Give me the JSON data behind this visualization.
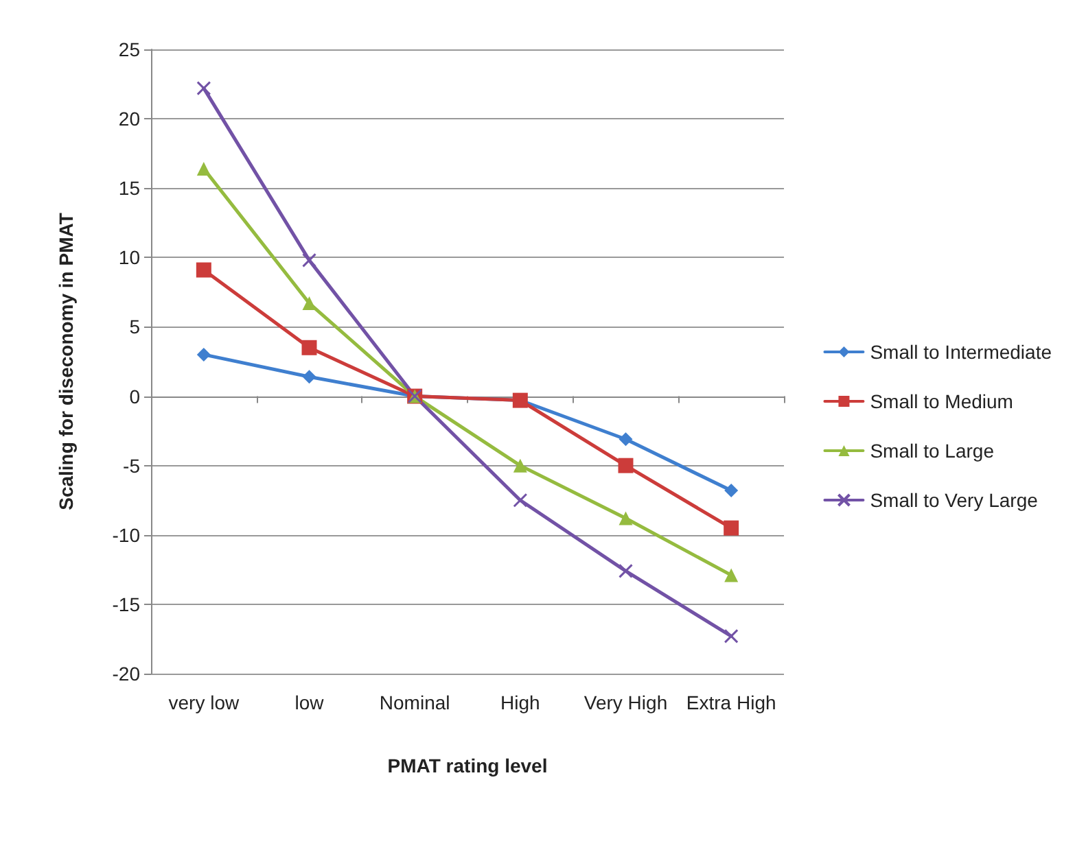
{
  "chart_data": {
    "type": "line",
    "xlabel": "PMAT rating level",
    "ylabel": "Scaling for diseconomy in PMAT",
    "categories": [
      "very low",
      "low",
      "Nominal",
      "High",
      "Very High",
      "Extra High"
    ],
    "series": [
      {
        "name": "Small to Intermediate",
        "color": "#3f7fcf",
        "marker": "diamond",
        "values": [
          3,
          1.4,
          0,
          -0.3,
          -3.1,
          -6.8
        ]
      },
      {
        "name": "Small to Medium",
        "color": "#cc3c3a",
        "marker": "square",
        "values": [
          9.1,
          3.5,
          0,
          -0.3,
          -5,
          -9.5
        ]
      },
      {
        "name": "Small to Large",
        "color": "#95bb3f",
        "marker": "triangle",
        "values": [
          16.4,
          6.7,
          0,
          -5,
          -8.8,
          -12.9
        ]
      },
      {
        "name": "Small to Very Large",
        "color": "#7252a6",
        "marker": "cross",
        "values": [
          22.2,
          9.8,
          0,
          -7.5,
          -12.6,
          -17.3
        ]
      }
    ],
    "ylim": [
      -20,
      25
    ],
    "yticks": [
      -20,
      -15,
      -10,
      -5,
      0,
      5,
      10,
      15,
      20,
      25
    ],
    "grid": "y",
    "legend": "right"
  }
}
